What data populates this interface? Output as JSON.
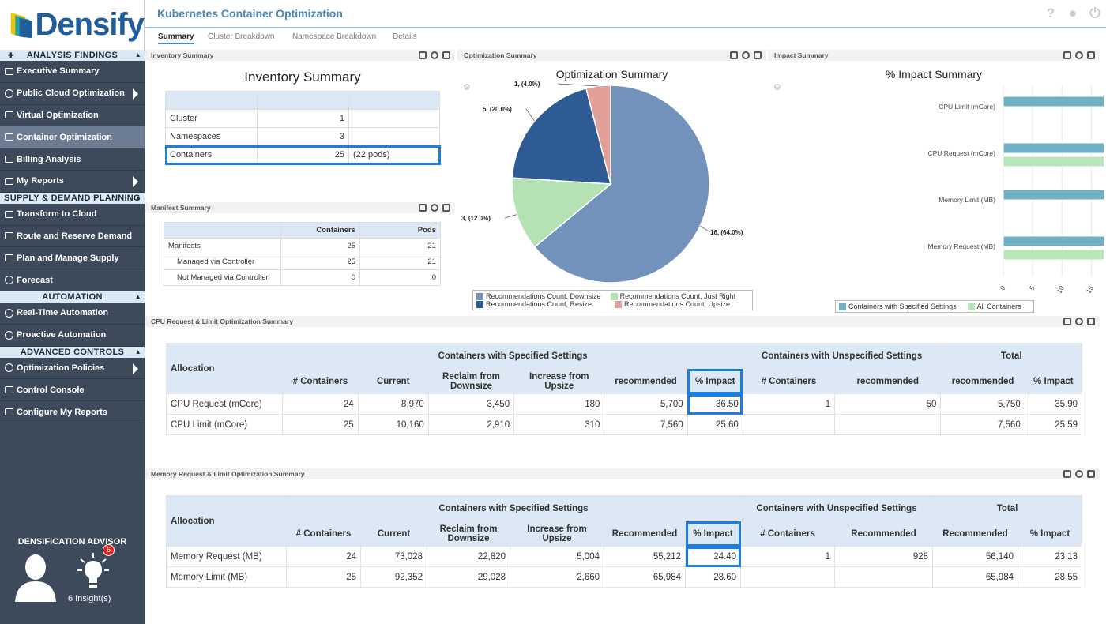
{
  "brand": {
    "name": "Densify"
  },
  "sidebar": {
    "sections": [
      {
        "label": "ANALYSIS FINDINGS"
      },
      {
        "label": "SUPPLY & DEMAND PLANNING"
      },
      {
        "label": "AUTOMATION"
      },
      {
        "label": "ADVANCED CONTROLS"
      }
    ],
    "items": [
      {
        "label": "Executive Summary"
      },
      {
        "label": "Public Cloud Optimization"
      },
      {
        "label": "Virtual Optimization"
      },
      {
        "label": "Container Optimization"
      },
      {
        "label": "Billing Analysis"
      },
      {
        "label": "My Reports"
      },
      {
        "label": "Transform to Cloud"
      },
      {
        "label": "Route and Reserve Demand"
      },
      {
        "label": "Plan and Manage Supply"
      },
      {
        "label": "Forecast"
      },
      {
        "label": "Real-Time Automation"
      },
      {
        "label": "Proactive Automation"
      },
      {
        "label": "Optimization Policies"
      },
      {
        "label": "Control Console"
      },
      {
        "label": "Configure My Reports"
      }
    ],
    "advisor": {
      "title": "DENSIFICATION ADVISOR",
      "badge": "6",
      "insights": "6 Insight(s)"
    }
  },
  "header": {
    "title": "Kubernetes Container Optimization"
  },
  "tabs": [
    "Summary",
    "Cluster Breakdown",
    "Namespace Breakdown",
    "Details"
  ],
  "inventory": {
    "panel": "Inventory Summary",
    "title": "Inventory Summary",
    "rows": [
      [
        "Cluster",
        "1",
        ""
      ],
      [
        "Namespaces",
        "3",
        ""
      ],
      [
        "Containers",
        "25",
        "(22 pods)"
      ]
    ]
  },
  "manifest": {
    "panel": "Manifest Summary",
    "headers": [
      "",
      "Containers",
      "Pods"
    ],
    "rows": [
      [
        "Manifests",
        "25",
        "21"
      ],
      [
        "Managed via Controller",
        "25",
        "21"
      ],
      [
        "Not Managed via Controller",
        "0",
        "0"
      ]
    ]
  },
  "optimization": {
    "panel": "Optimization Summary",
    "title": "Optimization Summary",
    "labels": [
      "16, (64.0%)",
      "3, (12.0%)",
      "5, (20.0%)",
      "1, (4.0%)"
    ],
    "legend": [
      "Recommendations Count, Downsize",
      "Recommendations Count, Just Right",
      "Recommendations Count, Resize",
      "Recommendations Count, Upsize"
    ],
    "colors": [
      "#7292bc",
      "#b5e2b5",
      "#2e5b94",
      "#e0a099"
    ]
  },
  "impact": {
    "panel": "Impact Summary",
    "title": "% Impact Summary",
    "legend": [
      "Containers with Specified Settings",
      "All Containers"
    ],
    "colors": [
      "#6fb0c4",
      "#b8e6b8"
    ]
  },
  "chart_data": [
    {
      "type": "pie",
      "title": "Optimization Summary",
      "categories": [
        "Recommendations Count, Downsize",
        "Recommendations Count, Just Right",
        "Recommendations Count, Resize",
        "Recommendations Count, Upsize"
      ],
      "values": [
        16,
        3,
        5,
        1
      ]
    },
    {
      "type": "bar",
      "title": "% Impact Summary",
      "categories": [
        "CPU Limit (mCore)",
        "CPU Request (mCore)",
        "Memory Limit (MB)",
        "Memory Request (MB)"
      ],
      "series": [
        {
          "name": "Containers with Specified Settings",
          "values": [
            25.6,
            36.5,
            28.6,
            24.4
          ]
        },
        {
          "name": "All Containers",
          "values": [
            null,
            35.9,
            null,
            23.13
          ]
        }
      ],
      "xlim": [
        0,
        40
      ],
      "ticks": [
        "0",
        "5",
        "10",
        "15",
        "20",
        "25",
        "30",
        "35",
        "40"
      ]
    }
  ],
  "cpu": {
    "panel": "CPU Request & Limit Optimization Summary",
    "group": [
      "Allocation",
      "Containers with Specified Settings",
      "Containers with Unspecified Settings",
      "Total"
    ],
    "cols": [
      "# Containers",
      "Current",
      "Reclaim from Downsize",
      "Increase from Upsize",
      "recommended",
      "% Impact",
      "# Containers",
      "recommended",
      "recommended",
      "% Impact"
    ],
    "rows": [
      [
        "CPU Request (mCore)",
        "24",
        "8,970",
        "3,450",
        "180",
        "5,700",
        "36.50",
        "1",
        "50",
        "5,750",
        "35.90"
      ],
      [
        "CPU Limit (mCore)",
        "25",
        "10,160",
        "2,910",
        "310",
        "7,560",
        "25.60",
        "",
        "",
        "7,560",
        "25.59"
      ]
    ]
  },
  "mem": {
    "panel": "Memory Request & Limit Optimization Summary",
    "group": [
      "Allocation",
      "Containers with Specified Settings",
      "Containers with Unspecified Settings",
      "Total"
    ],
    "cols": [
      "# Containers",
      "Current",
      "Reclaim from Downsize",
      "Increase from Upsize",
      "Recommended",
      "% Impact",
      "# Containers",
      "Recommended",
      "Recommended",
      "% Impact"
    ],
    "rows": [
      [
        "Memory Request (MB)",
        "24",
        "73,028",
        "22,820",
        "5,004",
        "55,212",
        "24.40",
        "1",
        "928",
        "56,140",
        "23.13"
      ],
      [
        "Memory Limit (MB)",
        "25",
        "92,352",
        "29,028",
        "2,660",
        "65,984",
        "28.60",
        "",
        "",
        "65,984",
        "28.55"
      ]
    ]
  }
}
